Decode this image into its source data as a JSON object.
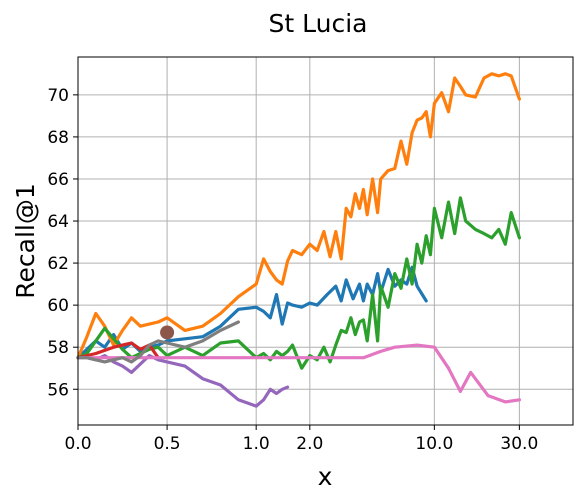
{
  "chart_data": {
    "type": "line",
    "title": "St Lucia",
    "xlabel": "x",
    "ylabel": "Recall@1",
    "x_scale": "symlog",
    "xlim": [
      0,
      60
    ],
    "ylim": [
      54.3,
      71.8
    ],
    "grid": true,
    "legend": "none",
    "x_ticks": [
      {
        "value": 0,
        "label": "0.0"
      },
      {
        "value": 0.5,
        "label": "0.5"
      },
      {
        "value": 1,
        "label": "1.0"
      },
      {
        "value": 2,
        "label": "2.0"
      },
      {
        "value": 10,
        "label": "10.0"
      },
      {
        "value": 30,
        "label": "30.0"
      }
    ],
    "y_ticks": [
      {
        "value": 56,
        "label": "56"
      },
      {
        "value": 58,
        "label": "58"
      },
      {
        "value": 60,
        "label": "60"
      },
      {
        "value": 62,
        "label": "62"
      },
      {
        "value": 64,
        "label": "64"
      },
      {
        "value": 66,
        "label": "66"
      },
      {
        "value": 68,
        "label": "68"
      },
      {
        "value": 70,
        "label": "70"
      }
    ],
    "series": [
      {
        "color": "#1f77b4",
        "x": [
          0,
          0.05,
          0.1,
          0.15,
          0.2,
          0.25,
          0.3,
          0.35,
          0.4,
          0.45,
          0.5,
          0.6,
          0.7,
          0.8,
          0.9,
          1.0,
          1.1,
          1.2,
          1.3,
          1.4,
          1.5,
          1.6,
          1.8,
          2.0,
          2.2,
          2.5,
          2.8,
          3.0,
          3.2,
          3.5,
          3.8,
          4.0,
          4.2,
          4.5,
          4.8,
          5.0,
          5.5,
          6.0,
          6.5,
          7.0,
          7.5,
          8.0,
          9.0
        ],
        "y": [
          57.5,
          57.9,
          58.3,
          58.0,
          58.6,
          57.9,
          58.2,
          57.8,
          58.0,
          58.1,
          58.3,
          58.4,
          58.5,
          59.0,
          59.8,
          59.9,
          59.7,
          59.4,
          60.5,
          59.1,
          60.1,
          60.0,
          59.9,
          60.1,
          60.0,
          60.5,
          60.9,
          60.2,
          61.2,
          60.3,
          61.0,
          60.2,
          61.0,
          60.5,
          61.5,
          60.6,
          61.7,
          60.9,
          61.2,
          61.0,
          61.8,
          60.9,
          60.2
        ]
      },
      {
        "color": "#ff7f0e",
        "x": [
          0,
          0.05,
          0.1,
          0.15,
          0.2,
          0.25,
          0.3,
          0.35,
          0.4,
          0.45,
          0.5,
          0.6,
          0.7,
          0.8,
          0.9,
          1.0,
          1.1,
          1.2,
          1.3,
          1.4,
          1.5,
          1.6,
          1.8,
          2.0,
          2.2,
          2.4,
          2.6,
          2.8,
          3.0,
          3.2,
          3.4,
          3.6,
          3.8,
          4.0,
          4.2,
          4.5,
          4.8,
          5.0,
          5.5,
          6.0,
          6.5,
          7.0,
          7.5,
          8.0,
          8.5,
          9.0,
          9.5,
          10,
          11,
          12,
          13,
          14,
          15,
          17,
          19,
          21,
          23,
          25,
          27,
          30
        ],
        "y": [
          57.5,
          58.5,
          59.6,
          59.0,
          58.1,
          58.8,
          59.4,
          59.0,
          59.1,
          59.2,
          59.4,
          58.8,
          59.0,
          59.6,
          60.4,
          61.0,
          62.2,
          61.6,
          61.2,
          61.0,
          62.1,
          62.6,
          62.4,
          62.9,
          62.6,
          63.5,
          62.3,
          63.5,
          62.2,
          64.6,
          64.2,
          65.3,
          64.6,
          65.5,
          64.3,
          66.0,
          64.4,
          66.0,
          66.4,
          66.5,
          67.8,
          66.7,
          68.2,
          68.8,
          68.9,
          69.2,
          68.0,
          69.6,
          70.1,
          69.2,
          70.8,
          70.4,
          70.0,
          69.9,
          70.8,
          71.0,
          70.9,
          71.0,
          70.9,
          69.8
        ]
      },
      {
        "color": "#2ca02c",
        "x": [
          0,
          0.05,
          0.1,
          0.15,
          0.2,
          0.25,
          0.3,
          0.35,
          0.4,
          0.45,
          0.5,
          0.6,
          0.7,
          0.8,
          0.9,
          1.0,
          1.1,
          1.2,
          1.3,
          1.4,
          1.5,
          1.6,
          1.8,
          2.0,
          2.2,
          2.4,
          2.6,
          2.8,
          3.0,
          3.2,
          3.4,
          3.6,
          3.8,
          4.0,
          4.2,
          4.5,
          4.8,
          5.0,
          5.5,
          6.0,
          6.5,
          7.0,
          7.5,
          8.0,
          8.5,
          9.0,
          9.5,
          10,
          11,
          12,
          13,
          14,
          15,
          17,
          19,
          21,
          23,
          25,
          27,
          30
        ],
        "y": [
          57.5,
          57.7,
          58.3,
          58.9,
          58.4,
          57.9,
          57.5,
          57.7,
          57.9,
          58.0,
          57.6,
          58.0,
          57.6,
          58.2,
          58.3,
          57.5,
          57.7,
          57.4,
          57.8,
          57.6,
          57.8,
          58.1,
          57.0,
          57.6,
          57.4,
          58.0,
          57.3,
          58.1,
          58.8,
          58.7,
          59.4,
          58.6,
          59.2,
          59.3,
          58.3,
          60.5,
          58.3,
          60.9,
          59.9,
          61.5,
          60.8,
          62.2,
          61.0,
          62.9,
          62.0,
          63.3,
          62.4,
          64.6,
          63.2,
          64.9,
          63.4,
          65.1,
          64.0,
          63.6,
          63.4,
          63.2,
          63.6,
          62.9,
          64.4,
          63.2
        ]
      },
      {
        "color": "#d62728",
        "x": [
          0,
          0.1,
          0.2,
          0.3,
          0.35,
          0.4,
          0.45
        ],
        "y": [
          57.5,
          57.7,
          58.0,
          58.2,
          57.9,
          58.1,
          57.5
        ]
      },
      {
        "color": "#9467bd",
        "x": [
          0,
          0.05,
          0.1,
          0.15,
          0.2,
          0.25,
          0.3,
          0.35,
          0.4,
          0.45,
          0.5,
          0.6,
          0.7,
          0.8,
          0.9,
          1.0,
          1.1,
          1.2,
          1.3,
          1.4,
          1.5
        ],
        "y": [
          57.5,
          57.5,
          57.4,
          57.6,
          57.3,
          57.1,
          56.8,
          57.2,
          57.6,
          57.4,
          57.3,
          57.1,
          56.5,
          56.2,
          55.5,
          55.2,
          55.5,
          56.0,
          55.8,
          56.0,
          56.1
        ]
      },
      {
        "color": "#8c564b",
        "marker": "circle",
        "x": [
          0.5
        ],
        "y": [
          58.7
        ]
      },
      {
        "color": "#e377c2",
        "x": [
          0,
          0.1,
          0.2,
          0.5,
          1.0,
          2.0,
          3.0,
          4.0,
          5.0,
          6.0,
          8.0,
          10,
          12,
          14,
          16,
          20,
          25,
          30
        ],
        "y": [
          57.5,
          57.5,
          57.5,
          57.5,
          57.5,
          57.5,
          57.5,
          57.5,
          57.8,
          58.0,
          58.1,
          58.0,
          57.0,
          55.9,
          56.8,
          55.7,
          55.4,
          55.5
        ]
      },
      {
        "color": "#7f7f7f",
        "x": [
          0,
          0.05,
          0.1,
          0.15,
          0.2,
          0.25,
          0.3,
          0.35,
          0.4,
          0.45,
          0.5,
          0.6,
          0.7,
          0.8,
          0.9
        ],
        "y": [
          57.5,
          57.5,
          57.4,
          57.3,
          57.4,
          57.5,
          57.3,
          57.6,
          58.1,
          58.3,
          58.2,
          58.0,
          58.3,
          58.8,
          59.2
        ]
      }
    ]
  }
}
